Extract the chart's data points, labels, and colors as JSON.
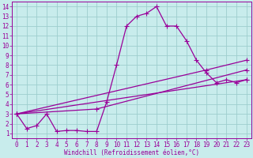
{
  "xlabel": "Windchill (Refroidissement éolien,°C)",
  "bg_color": "#c8ecec",
  "grid_color": "#b0d8d8",
  "line_color": "#990099",
  "xlim": [
    -0.5,
    23.5
  ],
  "ylim": [
    0.5,
    14.5
  ],
  "xticks": [
    0,
    1,
    2,
    3,
    4,
    5,
    6,
    7,
    8,
    9,
    10,
    11,
    12,
    13,
    14,
    15,
    16,
    17,
    18,
    19,
    20,
    21,
    22,
    23
  ],
  "yticks": [
    1,
    2,
    3,
    4,
    5,
    6,
    7,
    8,
    9,
    10,
    11,
    12,
    13,
    14
  ],
  "line1_x": [
    0,
    1,
    2,
    3,
    4,
    5,
    6,
    7,
    8,
    9,
    10,
    11,
    12,
    13,
    14,
    15,
    16,
    17,
    18,
    19,
    20,
    21,
    22,
    23
  ],
  "line1_y": [
    3.0,
    1.5,
    1.8,
    3.0,
    1.2,
    1.3,
    1.3,
    1.2,
    1.2,
    4.2,
    8.0,
    12.0,
    13.0,
    13.3,
    14.0,
    12.0,
    12.0,
    10.5,
    8.5,
    7.2,
    6.2,
    6.5,
    6.2,
    6.5
  ],
  "line2_x": [
    0,
    23
  ],
  "line2_y": [
    3.0,
    6.5
  ],
  "line3_x": [
    0,
    8,
    23
  ],
  "line3_y": [
    3.0,
    3.5,
    7.5
  ],
  "line4_x": [
    0,
    19,
    23
  ],
  "line4_y": [
    3.0,
    7.5,
    8.5
  ],
  "marker": "+",
  "markersize": 4,
  "linewidth": 0.9,
  "tick_fontsize": 5.5,
  "xlabel_fontsize": 5.5
}
